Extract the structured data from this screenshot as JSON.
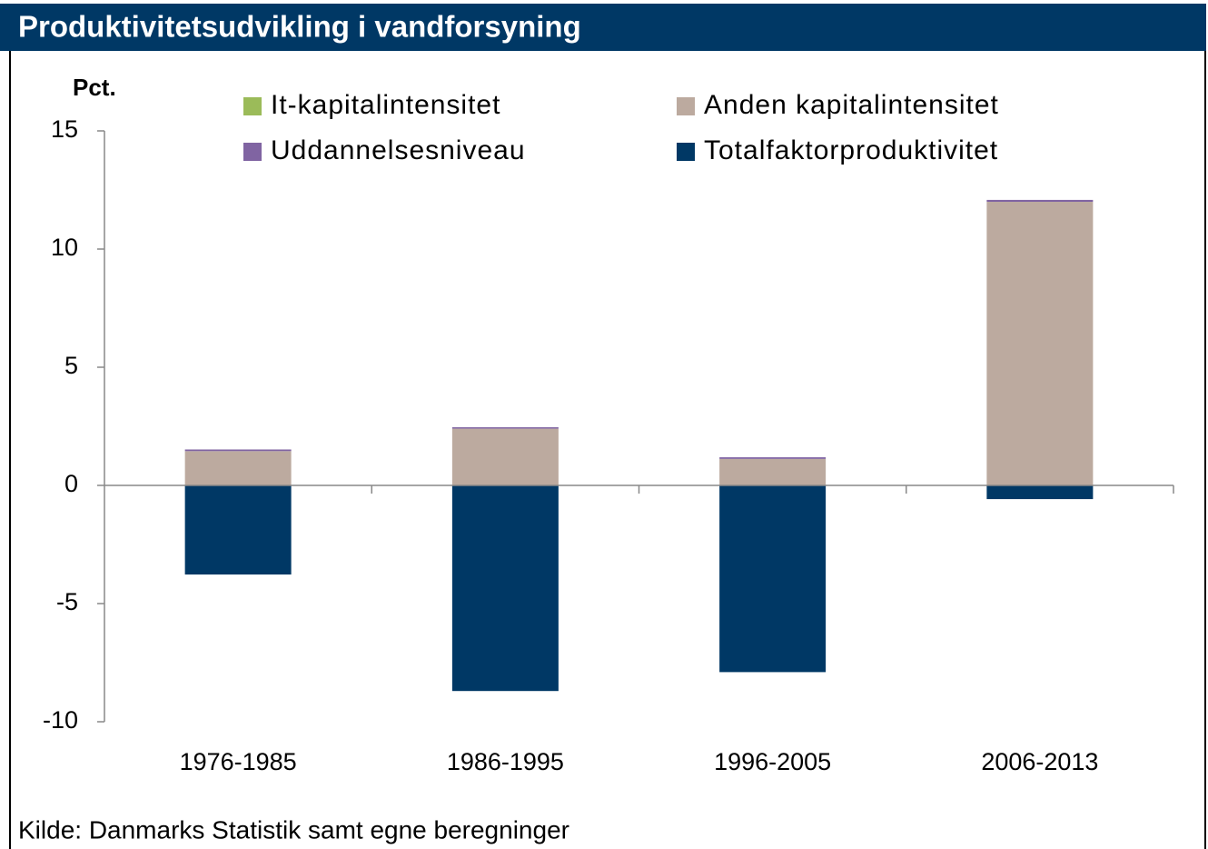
{
  "chart_data": {
    "type": "bar",
    "stacked": true,
    "title": "Produktivitetsudvikling i vandforsyning",
    "y_label": "Pct.",
    "source": "Kilde: Danmarks Statistik samt egne beregninger",
    "categories": [
      "1976-1985",
      "1986-1995",
      "1996-2005",
      "2006-2013"
    ],
    "series": [
      {
        "name": "It-kapitalintensitet",
        "color": "#9bbb59",
        "values": [
          0,
          0,
          0,
          0
        ]
      },
      {
        "name": "Anden kapitalintensitet",
        "color": "#bcaa9f",
        "values": [
          1.45,
          2.4,
          1.12,
          12.0
        ]
      },
      {
        "name": "Uddannelsesniveau",
        "color": "#8064a2",
        "values": [
          0.07,
          0.06,
          0.07,
          0.08
        ]
      },
      {
        "name": "Totalfaktorproduktivitet",
        "color": "#003865",
        "values": [
          -3.77,
          -8.7,
          -7.9,
          -0.58
        ]
      }
    ],
    "ylim": [
      -10,
      15
    ],
    "yticks": [
      -10,
      -5,
      0,
      5,
      10,
      15
    ]
  }
}
